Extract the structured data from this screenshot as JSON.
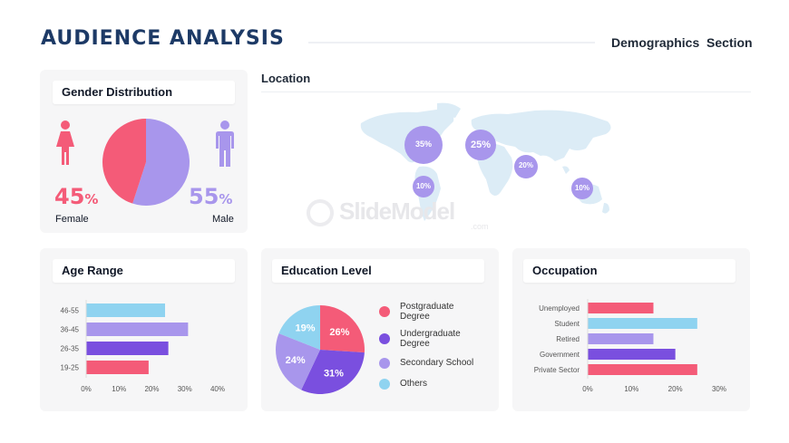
{
  "header": {
    "title": "AUDIENCE ANALYSIS",
    "section": "Demographics  Section"
  },
  "gender": {
    "heading": "Gender Distribution",
    "female_pct": "45",
    "male_pct": "55",
    "pct_sign": "%",
    "female_label": "Female",
    "male_label": "Male",
    "colors": {
      "female": "#f45b78",
      "male": "#a896ec"
    }
  },
  "location": {
    "heading": "Location",
    "bubbles": [
      "35%",
      "25%",
      "20%",
      "10%",
      "10%"
    ]
  },
  "watermark": {
    "text": "SlideModel",
    "suffix": ".com"
  },
  "age": {
    "heading": "Age Range",
    "categories": [
      "46-55",
      "36-45",
      "26-35",
      "19-25"
    ],
    "ticks": [
      "0%",
      "10%",
      "20%",
      "30%",
      "40%"
    ]
  },
  "education": {
    "heading": "Education Level",
    "legend": [
      "Postgraduate Degree",
      "Undergraduate Degree",
      "Secondary School",
      "Others"
    ],
    "labels": [
      "26%",
      "31%",
      "24%",
      "19%"
    ]
  },
  "occupation": {
    "heading": "Occupation",
    "categories": [
      "Unemployed",
      "Student",
      "Retired",
      "Government",
      "Private Sector"
    ],
    "ticks": [
      "0%",
      "10%",
      "20%",
      "30%"
    ]
  },
  "chart_data": [
    {
      "type": "pie",
      "labels": [
        "Female",
        "Male"
      ],
      "values": [
        45,
        55
      ],
      "colors": [
        "#f45b78",
        "#a896ec"
      ]
    },
    {
      "type": "bar",
      "title": "Age Range",
      "categories": [
        "46-55",
        "36-45",
        "26-35",
        "19-25"
      ],
      "values": [
        24,
        31,
        25,
        19
      ],
      "xlim": [
        0,
        40
      ],
      "colors": [
        "#8fd3f0",
        "#a896ec",
        "#7a4fdf",
        "#f45b78"
      ]
    },
    {
      "type": "pie",
      "title": "Education Level",
      "labels": [
        "Postgraduate Degree",
        "Undergraduate Degree",
        "Secondary School",
        "Others"
      ],
      "values": [
        26,
        31,
        24,
        19
      ],
      "colors": [
        "#f45b78",
        "#7a4fdf",
        "#a896ec",
        "#8fd3f0"
      ]
    },
    {
      "type": "bar",
      "title": "Occupation",
      "categories": [
        "Unemployed",
        "Student",
        "Retired",
        "Government",
        "Private Sector"
      ],
      "values": [
        15,
        25,
        15,
        20,
        25
      ],
      "xlim": [
        0,
        30
      ],
      "colors": [
        "#f45b78",
        "#8fd3f0",
        "#a896ec",
        "#7a4fdf",
        "#f45b78"
      ]
    }
  ]
}
